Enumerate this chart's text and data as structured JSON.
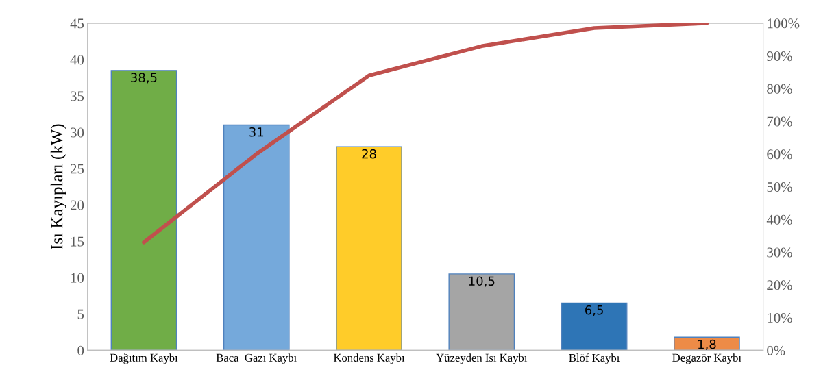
{
  "chart_data": {
    "type": "bar",
    "ylabel": "Isı Kayıpları (kW)",
    "categories": [
      "Dağıtım Kaybı",
      "Baca  Gazı Kaybı",
      "Kondens Kaybı",
      "Yüzeyden Isı Kaybı",
      "Blöf Kaybı",
      "Degazör Kaybı"
    ],
    "series": [
      {
        "colors": [
          "#70ad47",
          "#75a9db",
          "#ffcc29",
          "#a5a5a5",
          "#2e75b6",
          "#ed8b47"
        ],
        "values": [
          38.5,
          31,
          28,
          10.5,
          6.5,
          1.8
        ],
        "value_labels": [
          "38,5",
          "31",
          "28",
          "10,5",
          "6,5",
          "1,8"
        ]
      },
      {
        "type": "line",
        "axis": "y2",
        "color": "#c0504d",
        "values": [
          33,
          60,
          84,
          93,
          98.5,
          100
        ]
      }
    ],
    "ylim": [
      0,
      45
    ],
    "yticks": [
      0,
      5,
      10,
      15,
      20,
      25,
      30,
      35,
      40,
      45
    ],
    "y2lim": [
      0,
      100
    ],
    "y2ticks": [
      {
        "value": 0,
        "label": "0%"
      },
      {
        "value": 10,
        "label": "10%"
      },
      {
        "value": 20,
        "label": "20%"
      },
      {
        "value": 30,
        "label": "30%"
      },
      {
        "value": 40,
        "label": "40%"
      },
      {
        "value": 50,
        "label": "50%"
      },
      {
        "value": 60,
        "label": "60%"
      },
      {
        "value": 70,
        "label": "70%"
      },
      {
        "value": 80,
        "label": "80%"
      },
      {
        "value": 90,
        "label": "90%"
      },
      {
        "value": 100,
        "label": "100%"
      }
    ],
    "grid": false,
    "legend": false,
    "marker": "none",
    "line_style": "solid"
  }
}
